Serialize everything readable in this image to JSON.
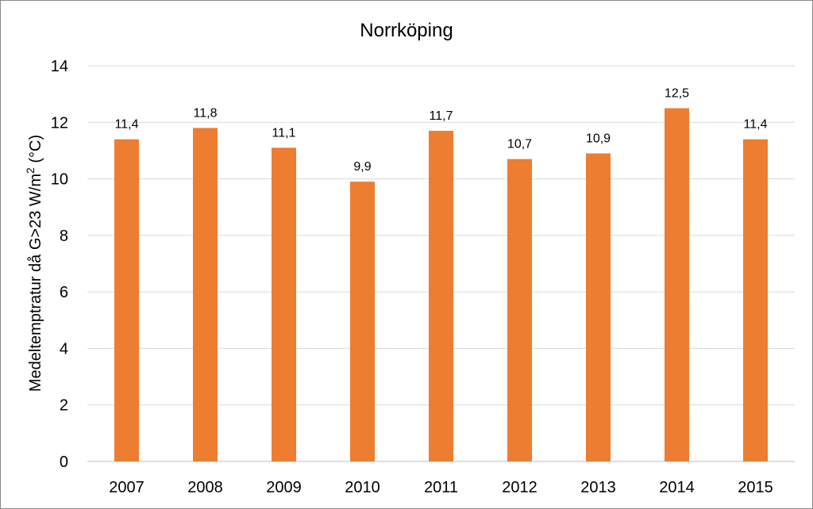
{
  "chart_data": {
    "type": "bar",
    "title": "Norrköping",
    "ylabel_main": "Medeltemptratur då G>23 W/m",
    "ylabel_sup": "2",
    "ylabel_tail": " (°C)",
    "xlabel": "",
    "categories": [
      "2007",
      "2008",
      "2009",
      "2010",
      "2011",
      "2012",
      "2013",
      "2014",
      "2015"
    ],
    "values": [
      11.4,
      11.8,
      11.1,
      9.9,
      11.7,
      10.7,
      10.9,
      12.5,
      11.4
    ],
    "data_labels": [
      "11,4",
      "11,8",
      "11,1",
      "9,9",
      "11,7",
      "10,7",
      "10,9",
      "12,5",
      "11,4"
    ],
    "ylim": [
      0,
      14
    ],
    "yticks": [
      0,
      2,
      4,
      6,
      8,
      10,
      12,
      14
    ],
    "grid": true,
    "legend": "none",
    "bar_color": "#ed7d31"
  }
}
